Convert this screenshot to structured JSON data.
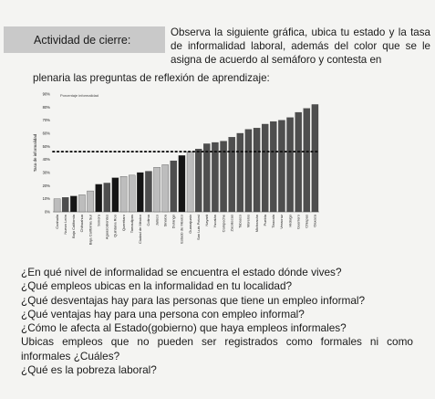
{
  "header": {
    "activity_label": "Actividad de cierre:",
    "instruction_part1": "Observa la siguiente gráfica, ubica tu estado y la tasa de informalidad laboral, además del color que se le asigna de acuerdo al semáforo y contesta en",
    "instruction_part2": "plenaria las preguntas de reflexión de aprendizaje:"
  },
  "colors": {
    "light_gray": "#bdbdbd",
    "dark_gray": "#4e4e4e",
    "black": "#151515",
    "threshold_line": "#111111"
  },
  "chart_data": {
    "type": "bar",
    "title": "Porcentaje informalidad",
    "ylabel": "Tasa de informalidad",
    "yticks": [
      "0%",
      "10%",
      "20%",
      "30%",
      "40%",
      "50%",
      "60%",
      "70%",
      "80%",
      "90%"
    ],
    "ylim": [
      0,
      90
    ],
    "threshold": 46,
    "grid": false,
    "legend": "none",
    "categories": [
      "Coahuila",
      "Nuevo León",
      "Baja California",
      "Chihuahua",
      "Baja California Sur",
      "Sonora",
      "Aguascalientes",
      "Quintana Roo",
      "Querétaro",
      "Tamaulipas",
      "Ciudad de México",
      "Colima",
      "Jalisco",
      "Sinaloa",
      "Durango",
      "Estado de México",
      "Guanajuato",
      "San Luis Potosí",
      "Nayarit",
      "Yucatán",
      "Campeche",
      "Zacatecas",
      "Tabasco",
      "Morelos",
      "Michoacán",
      "Puebla",
      "Tlaxcala",
      "Veracruz",
      "Hidalgo",
      "Guerrero",
      "Chiapas",
      "Oaxaca"
    ],
    "values": [
      10,
      11,
      12,
      13,
      16,
      21,
      22,
      26,
      27,
      28,
      30,
      31,
      34,
      36,
      39,
      43,
      46,
      48,
      52,
      53,
      54,
      57,
      60,
      63,
      64,
      67,
      69,
      70,
      72,
      76,
      79,
      82
    ],
    "bar_colors": [
      "light_gray",
      "dark_gray",
      "black",
      "light_gray",
      "light_gray",
      "black",
      "dark_gray",
      "black",
      "light_gray",
      "light_gray",
      "black",
      "dark_gray",
      "light_gray",
      "light_gray",
      "dark_gray",
      "black",
      "light_gray",
      "dark_gray",
      "dark_gray",
      "dark_gray",
      "dark_gray",
      "dark_gray",
      "dark_gray",
      "dark_gray",
      "dark_gray",
      "dark_gray",
      "dark_gray",
      "dark_gray",
      "dark_gray",
      "dark_gray",
      "dark_gray",
      "dark_gray"
    ]
  },
  "questions": [
    "¿En qué nivel de informalidad se encuentra el estado dónde vives?",
    "¿Qué empleos ubicas en la informalidad en tu localidad?",
    "¿Qué desventajas hay para las personas que tiene un empleo informal?",
    "¿Qué ventajas hay para una persona con empleo informal?",
    "¿Cómo le afecta al Estado(gobierno) que haya empleos informales?",
    "Ubicas empleos que no pueden ser registrados como formales ni como",
    "informales ¿Cuáles?",
    "¿Qué es la pobreza laboral?"
  ]
}
